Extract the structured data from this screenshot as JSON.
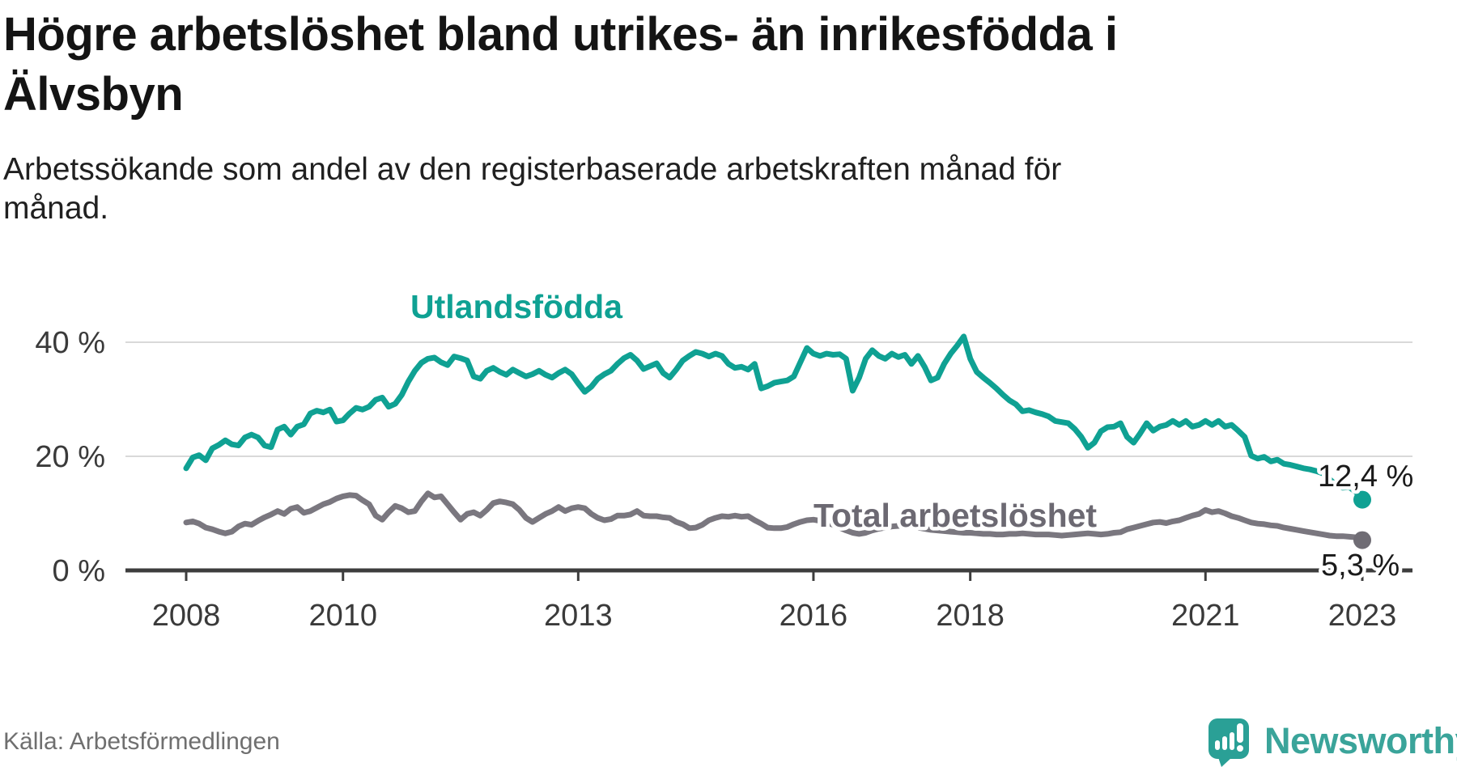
{
  "header": {
    "title_lines": [
      "Högre arbetslöshet bland utrikes- än inrikesfödda i",
      "Älvsbyn"
    ],
    "subtitle_lines": [
      "Arbetssökande som andel av den registerbaserade arbetskraften månad för",
      "månad."
    ]
  },
  "footer": {
    "source": "Källa: Arbetsförmedlingen",
    "brand": "Newsworthy"
  },
  "colors": {
    "foreign_line": "#0fa193",
    "total_line": "#7a777f",
    "total_dot": "#6f6c74",
    "brand_teal": "#2aa096",
    "axis_text": "#3a3a3a",
    "gridline": "#d9d9d9"
  },
  "chart_data": {
    "type": "line",
    "title": "Högre arbetslöshet bland utrikes- än inrikesfödda i Älvsbyn",
    "subtitle": "Arbetssökande som andel av den registerbaserade arbetskraften månad för månad.",
    "unit": "%",
    "x_start": "2008-01",
    "x_interval": "monthly",
    "x_end": "2023-01",
    "grid": "horizontal",
    "legend_position": "inline-labels",
    "x_ticks": [
      2008,
      2010,
      2013,
      2016,
      2018,
      2021,
      2023
    ],
    "x_tick_labels": [
      "2008",
      "2010",
      "2013",
      "2016",
      "2018",
      "2021",
      "2023"
    ],
    "y_ticks": [
      0,
      20,
      40
    ],
    "y_tick_labels": [
      "0 %",
      "20 %",
      "40 %"
    ],
    "ylim": [
      0,
      45
    ],
    "series": [
      {
        "name": "Utlandsfödda",
        "label": "Utlandsfödda",
        "color": "#0fa193",
        "dot_color": "#0fa193",
        "end_value": 12.4,
        "end_label": "12,4 %",
        "values": [
          17.9,
          19.8,
          20.2,
          19.3,
          21.4,
          22.0,
          22.8,
          22.1,
          21.9,
          23.3,
          23.8,
          23.3,
          21.9,
          21.6,
          24.7,
          25.2,
          23.8,
          25.2,
          25.6,
          27.5,
          28.0,
          27.7,
          28.2,
          26.1,
          26.3,
          27.5,
          28.5,
          28.2,
          28.7,
          29.9,
          30.3,
          28.7,
          29.2,
          30.8,
          33.1,
          35.0,
          36.4,
          37.1,
          37.3,
          36.5,
          36.0,
          37.5,
          37.2,
          36.8,
          34.0,
          33.6,
          35.0,
          35.5,
          34.8,
          34.3,
          35.2,
          34.6,
          34.0,
          34.4,
          35.0,
          34.3,
          33.8,
          34.6,
          35.2,
          34.4,
          32.8,
          31.3,
          32.2,
          33.6,
          34.4,
          35.0,
          36.2,
          37.2,
          37.8,
          36.8,
          35.3,
          35.8,
          36.3,
          34.6,
          33.8,
          35.2,
          36.8,
          37.6,
          38.3,
          38.0,
          37.5,
          38.0,
          37.6,
          36.2,
          35.5,
          35.7,
          35.2,
          36.2,
          31.9,
          32.3,
          32.9,
          33.1,
          33.3,
          34.0,
          36.5,
          39.0,
          38.0,
          37.6,
          38.0,
          37.8,
          37.9,
          37.1,
          31.5,
          33.8,
          37.1,
          38.6,
          37.6,
          37.1,
          38.0,
          37.4,
          37.8,
          36.2,
          37.6,
          35.7,
          33.3,
          33.8,
          36.2,
          38.0,
          39.4,
          41.0,
          37.1,
          34.8,
          33.8,
          32.9,
          31.9,
          30.8,
          29.8,
          29.1,
          27.9,
          28.1,
          27.7,
          27.4,
          27.0,
          26.2,
          26.0,
          25.8,
          24.8,
          23.4,
          21.5,
          22.4,
          24.4,
          25.1,
          25.2,
          25.8,
          23.4,
          22.4,
          24.0,
          25.8,
          24.5,
          25.2,
          25.5,
          26.2,
          25.5,
          26.2,
          25.2,
          25.5,
          26.2,
          25.5,
          26.2,
          25.2,
          25.5,
          24.5,
          23.4,
          20.1,
          19.6,
          19.9,
          19.1,
          19.4,
          18.7,
          18.5,
          18.2,
          17.9,
          17.7,
          17.4,
          17.0,
          16.0,
          14.9,
          14.5,
          14.6,
          13.8,
          12.4
        ]
      },
      {
        "name": "Total arbetslöshet",
        "label": "Total arbetslöshet",
        "color": "#7a777f",
        "dot_color": "#6f6c74",
        "end_value": 5.3,
        "end_label": "5,3 %",
        "values": [
          8.4,
          8.6,
          8.2,
          7.5,
          7.2,
          6.8,
          6.5,
          6.8,
          7.7,
          8.2,
          8.0,
          8.7,
          9.3,
          9.8,
          10.4,
          9.9,
          10.8,
          11.1,
          10.1,
          10.4,
          11.0,
          11.6,
          12.0,
          12.6,
          13.0,
          13.2,
          13.1,
          12.3,
          11.6,
          9.6,
          8.9,
          10.2,
          11.3,
          10.9,
          10.2,
          10.4,
          12.1,
          13.5,
          12.8,
          13.0,
          11.6,
          10.2,
          8.9,
          9.9,
          10.2,
          9.6,
          10.6,
          11.8,
          12.1,
          11.9,
          11.6,
          10.6,
          9.2,
          8.5,
          9.2,
          9.9,
          10.4,
          11.1,
          10.4,
          10.9,
          11.1,
          10.9,
          9.9,
          9.2,
          8.8,
          9.0,
          9.6,
          9.6,
          9.8,
          10.4,
          9.6,
          9.5,
          9.5,
          9.3,
          9.2,
          8.5,
          8.1,
          7.4,
          7.5,
          8.0,
          8.8,
          9.2,
          9.5,
          9.4,
          9.6,
          9.4,
          9.5,
          8.8,
          8.2,
          7.5,
          7.4,
          7.4,
          7.6,
          8.1,
          8.5,
          8.8,
          8.9,
          8.7,
          8.4,
          8.0,
          7.5,
          7.0,
          6.6,
          6.4,
          6.6,
          7.0,
          7.3,
          7.5,
          7.7,
          7.8,
          7.9,
          7.7,
          7.5,
          7.3,
          7.1,
          7.0,
          6.9,
          6.8,
          6.7,
          6.6,
          6.6,
          6.5,
          6.4,
          6.4,
          6.3,
          6.3,
          6.4,
          6.4,
          6.5,
          6.4,
          6.3,
          6.3,
          6.3,
          6.2,
          6.1,
          6.2,
          6.3,
          6.4,
          6.5,
          6.4,
          6.3,
          6.4,
          6.6,
          6.7,
          7.2,
          7.5,
          7.8,
          8.1,
          8.4,
          8.5,
          8.3,
          8.6,
          8.8,
          9.2,
          9.6,
          9.9,
          10.6,
          10.2,
          10.4,
          10.0,
          9.5,
          9.2,
          8.8,
          8.4,
          8.2,
          8.1,
          7.9,
          7.8,
          7.5,
          7.3,
          7.1,
          6.9,
          6.7,
          6.5,
          6.3,
          6.1,
          6.0,
          6.0,
          5.9,
          5.8,
          5.3
        ]
      }
    ]
  }
}
